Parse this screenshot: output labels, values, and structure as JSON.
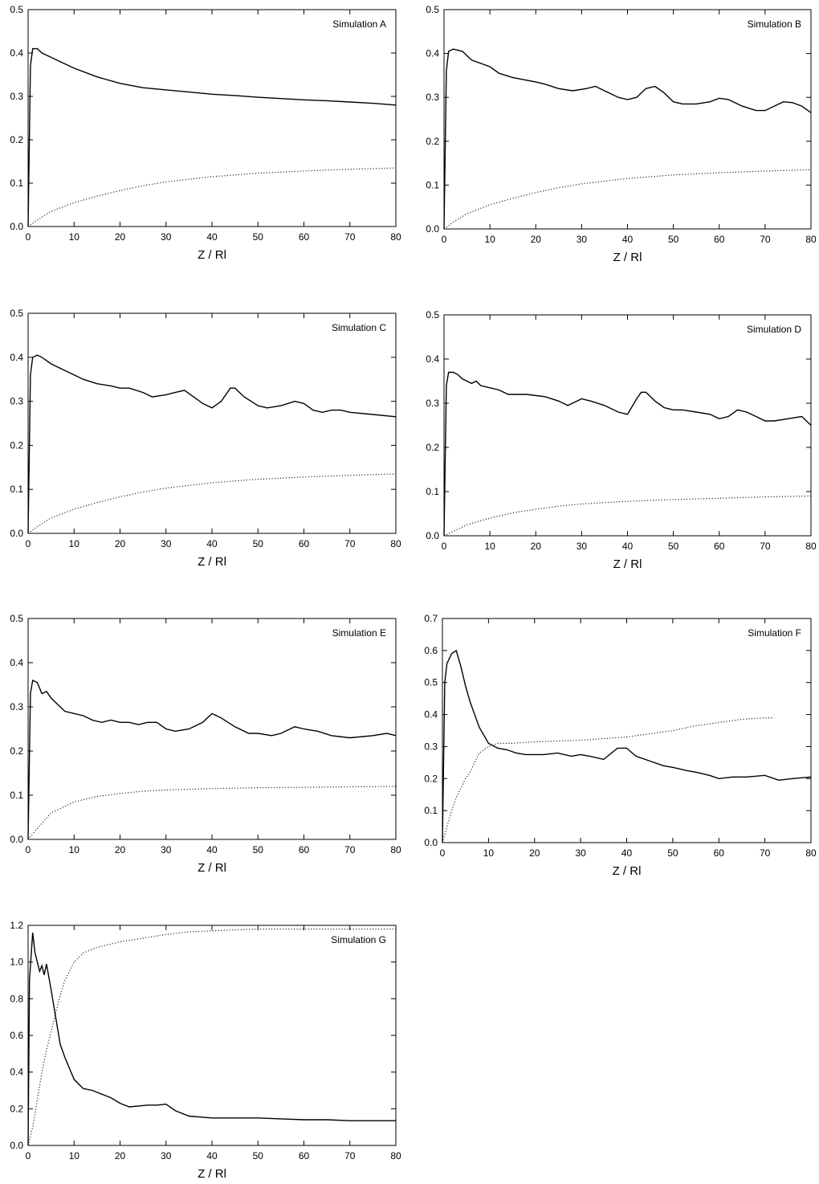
{
  "chart_data": [
    {
      "type": "line",
      "title": "Simulation A",
      "xlabel": "Z / Rl",
      "ylabel": "",
      "xlim": [
        0,
        80
      ],
      "ylim": [
        0,
        0.5
      ],
      "xticks": [
        "0",
        "10",
        "20",
        "30",
        "40",
        "50",
        "60",
        "70",
        "80"
      ],
      "yticks": [
        "0.0",
        "0.1",
        "0.2",
        "0.3",
        "0.4",
        "0.5"
      ],
      "grid": false,
      "series": [
        {
          "style": "solid",
          "color": "#000000",
          "x": [
            0,
            0.5,
            1,
            2,
            3,
            5,
            8,
            10,
            15,
            20,
            25,
            30,
            35,
            40,
            45,
            50,
            55,
            60,
            65,
            70,
            75,
            80
          ],
          "y": [
            0.0,
            0.37,
            0.41,
            0.41,
            0.4,
            0.39,
            0.375,
            0.365,
            0.345,
            0.33,
            0.32,
            0.315,
            0.31,
            0.305,
            0.302,
            0.298,
            0.295,
            0.292,
            0.29,
            0.287,
            0.284,
            0.28
          ]
        },
        {
          "style": "dotted",
          "color": "#000000",
          "x": [
            0,
            2,
            5,
            10,
            15,
            20,
            25,
            30,
            40,
            50,
            60,
            70,
            80
          ],
          "y": [
            0.0,
            0.015,
            0.035,
            0.055,
            0.07,
            0.083,
            0.094,
            0.103,
            0.115,
            0.123,
            0.128,
            0.132,
            0.135
          ]
        }
      ]
    },
    {
      "type": "line",
      "title": "Simulation B",
      "xlabel": "Z / Rl",
      "ylabel": "",
      "xlim": [
        0,
        80
      ],
      "ylim": [
        0,
        0.5
      ],
      "xticks": [
        "0",
        "10",
        "20",
        "30",
        "40",
        "50",
        "60",
        "70",
        "80"
      ],
      "yticks": [
        "0.0",
        "0.1",
        "0.2",
        "0.3",
        "0.4",
        "0.5"
      ],
      "grid": false,
      "series": [
        {
          "style": "solid",
          "color": "#000000",
          "x": [
            0,
            0.5,
            1,
            2,
            4,
            6,
            10,
            12,
            15,
            20,
            22,
            25,
            28,
            31,
            33,
            35,
            38,
            40,
            42,
            44,
            46,
            48,
            50,
            52,
            55,
            58,
            60,
            62,
            65,
            68,
            70,
            72,
            74,
            76,
            78,
            80
          ],
          "y": [
            0.0,
            0.36,
            0.405,
            0.41,
            0.405,
            0.385,
            0.37,
            0.355,
            0.345,
            0.335,
            0.33,
            0.32,
            0.315,
            0.32,
            0.325,
            0.315,
            0.3,
            0.295,
            0.3,
            0.32,
            0.325,
            0.31,
            0.29,
            0.285,
            0.285,
            0.29,
            0.298,
            0.295,
            0.28,
            0.27,
            0.27,
            0.28,
            0.29,
            0.288,
            0.28,
            0.265
          ]
        },
        {
          "style": "dotted",
          "color": "#000000",
          "x": [
            0,
            2,
            5,
            10,
            15,
            20,
            25,
            30,
            40,
            50,
            60,
            70,
            80
          ],
          "y": [
            0.0,
            0.015,
            0.035,
            0.055,
            0.07,
            0.083,
            0.094,
            0.103,
            0.115,
            0.123,
            0.128,
            0.132,
            0.135
          ]
        }
      ]
    },
    {
      "type": "line",
      "title": "Simulation C",
      "xlabel": "Z / Rl",
      "ylabel": "",
      "xlim": [
        0,
        80
      ],
      "ylim": [
        0,
        0.5
      ],
      "xticks": [
        "0",
        "10",
        "20",
        "30",
        "40",
        "50",
        "60",
        "70",
        "80"
      ],
      "yticks": [
        "0.0",
        "0.1",
        "0.2",
        "0.3",
        "0.4",
        "0.5"
      ],
      "grid": false,
      "series": [
        {
          "style": "solid",
          "color": "#000000",
          "x": [
            0,
            0.5,
            1,
            2,
            3,
            5,
            8,
            10,
            12,
            15,
            18,
            20,
            22,
            25,
            27,
            30,
            32,
            34,
            36,
            38,
            40,
            42,
            44,
            45,
            47,
            50,
            52,
            55,
            58,
            60,
            62,
            64,
            66,
            68,
            70,
            75,
            80
          ],
          "y": [
            0.0,
            0.36,
            0.4,
            0.405,
            0.4,
            0.385,
            0.37,
            0.36,
            0.35,
            0.34,
            0.335,
            0.33,
            0.33,
            0.32,
            0.31,
            0.315,
            0.32,
            0.325,
            0.31,
            0.295,
            0.285,
            0.3,
            0.33,
            0.33,
            0.31,
            0.29,
            0.285,
            0.29,
            0.3,
            0.295,
            0.28,
            0.275,
            0.28,
            0.28,
            0.275,
            0.27,
            0.265
          ]
        },
        {
          "style": "dotted",
          "color": "#000000",
          "x": [
            0,
            2,
            5,
            10,
            15,
            20,
            25,
            30,
            40,
            50,
            60,
            70,
            80
          ],
          "y": [
            0.0,
            0.015,
            0.035,
            0.055,
            0.07,
            0.083,
            0.094,
            0.103,
            0.115,
            0.123,
            0.128,
            0.132,
            0.135
          ]
        }
      ]
    },
    {
      "type": "line",
      "title": "Simulation D",
      "xlabel": "Z / Rl",
      "ylabel": "",
      "xlim": [
        0,
        80
      ],
      "ylim": [
        0,
        0.5
      ],
      "xticks": [
        "0",
        "10",
        "20",
        "30",
        "40",
        "50",
        "60",
        "70",
        "80"
      ],
      "yticks": [
        "0.0",
        "0.1",
        "0.2",
        "0.3",
        "0.4",
        "0.5"
      ],
      "grid": false,
      "series": [
        {
          "style": "solid",
          "color": "#000000",
          "x": [
            0,
            0.5,
            1,
            2,
            3,
            4,
            5,
            6,
            7,
            8,
            10,
            12,
            14,
            18,
            22,
            25,
            27,
            28,
            30,
            32,
            35,
            38,
            40,
            42,
            43,
            44,
            46,
            48,
            50,
            52,
            55,
            58,
            60,
            62,
            64,
            66,
            68,
            70,
            72,
            75,
            78,
            80
          ],
          "y": [
            0.0,
            0.34,
            0.37,
            0.37,
            0.365,
            0.355,
            0.35,
            0.345,
            0.35,
            0.34,
            0.335,
            0.33,
            0.32,
            0.32,
            0.315,
            0.305,
            0.295,
            0.3,
            0.31,
            0.305,
            0.295,
            0.28,
            0.275,
            0.31,
            0.325,
            0.325,
            0.305,
            0.29,
            0.285,
            0.285,
            0.28,
            0.275,
            0.265,
            0.27,
            0.285,
            0.28,
            0.27,
            0.26,
            0.26,
            0.265,
            0.27,
            0.25
          ]
        },
        {
          "style": "dotted",
          "color": "#000000",
          "x": [
            0,
            2,
            5,
            10,
            15,
            20,
            25,
            30,
            40,
            50,
            60,
            70,
            80
          ],
          "y": [
            0.0,
            0.01,
            0.025,
            0.04,
            0.052,
            0.06,
            0.067,
            0.072,
            0.078,
            0.082,
            0.085,
            0.088,
            0.09
          ]
        }
      ]
    },
    {
      "type": "line",
      "title": "Simulation E",
      "xlabel": "Z / Rl",
      "ylabel": "",
      "xlim": [
        0,
        80
      ],
      "ylim": [
        0,
        0.5
      ],
      "xticks": [
        "0",
        "10",
        "20",
        "30",
        "40",
        "50",
        "60",
        "70",
        "80"
      ],
      "yticks": [
        "0.0",
        "0.1",
        "0.2",
        "0.3",
        "0.4",
        "0.5"
      ],
      "grid": false,
      "series": [
        {
          "style": "solid",
          "color": "#000000",
          "x": [
            0,
            0.5,
            1,
            2,
            3,
            4,
            5,
            6,
            8,
            10,
            12,
            14,
            16,
            18,
            20,
            22,
            24,
            26,
            28,
            30,
            32,
            35,
            38,
            40,
            42,
            45,
            48,
            50,
            53,
            55,
            58,
            60,
            63,
            66,
            70,
            75,
            78,
            80
          ],
          "y": [
            0.0,
            0.33,
            0.36,
            0.355,
            0.33,
            0.335,
            0.32,
            0.31,
            0.29,
            0.285,
            0.28,
            0.27,
            0.265,
            0.27,
            0.265,
            0.265,
            0.26,
            0.265,
            0.265,
            0.25,
            0.245,
            0.25,
            0.265,
            0.285,
            0.275,
            0.255,
            0.24,
            0.24,
            0.235,
            0.24,
            0.255,
            0.25,
            0.245,
            0.235,
            0.23,
            0.235,
            0.24,
            0.235
          ]
        },
        {
          "style": "dotted",
          "color": "#000000",
          "x": [
            0,
            2,
            5,
            10,
            15,
            20,
            25,
            30,
            40,
            50,
            60,
            70,
            80
          ],
          "y": [
            0.0,
            0.025,
            0.06,
            0.085,
            0.097,
            0.104,
            0.109,
            0.112,
            0.115,
            0.117,
            0.118,
            0.119,
            0.12
          ]
        }
      ]
    },
    {
      "type": "line",
      "title": "Simulation F",
      "xlabel": "Z / Rl",
      "ylabel": "",
      "xlim": [
        0,
        80
      ],
      "ylim": [
        0,
        0.7
      ],
      "xticks": [
        "0",
        "10",
        "20",
        "30",
        "40",
        "50",
        "60",
        "70",
        "80"
      ],
      "yticks": [
        "0.0",
        "0.1",
        "0.2",
        "0.3",
        "0.4",
        "0.5",
        "0.6",
        "0.7"
      ],
      "grid": false,
      "series": [
        {
          "style": "solid",
          "color": "#000000",
          "x": [
            0,
            0.5,
            1,
            2,
            3,
            4,
            5,
            6,
            8,
            10,
            12,
            14,
            16,
            18,
            20,
            22,
            25,
            28,
            30,
            32,
            35,
            38,
            40,
            42,
            45,
            48,
            50,
            53,
            55,
            58,
            60,
            63,
            66,
            70,
            73,
            76,
            80
          ],
          "y": [
            0.0,
            0.5,
            0.56,
            0.59,
            0.6,
            0.55,
            0.49,
            0.44,
            0.36,
            0.31,
            0.295,
            0.29,
            0.28,
            0.275,
            0.275,
            0.275,
            0.28,
            0.27,
            0.275,
            0.27,
            0.26,
            0.295,
            0.295,
            0.27,
            0.255,
            0.24,
            0.235,
            0.225,
            0.22,
            0.21,
            0.2,
            0.205,
            0.205,
            0.21,
            0.195,
            0.2,
            0.205
          ]
        },
        {
          "style": "dotted",
          "color": "#000000",
          "x": [
            0,
            1,
            2,
            3,
            4,
            5,
            6,
            7,
            8,
            10,
            12,
            15,
            20,
            30,
            40,
            50,
            55,
            60,
            65,
            70,
            72
          ],
          "y": [
            0.0,
            0.05,
            0.1,
            0.14,
            0.17,
            0.2,
            0.22,
            0.25,
            0.28,
            0.3,
            0.31,
            0.31,
            0.315,
            0.32,
            0.33,
            0.35,
            0.365,
            0.375,
            0.385,
            0.39,
            0.39
          ]
        }
      ]
    },
    {
      "type": "line",
      "title": "Simulation G",
      "xlabel": "Z / Rl",
      "ylabel": "",
      "xlim": [
        0,
        80
      ],
      "ylim": [
        0,
        1.2
      ],
      "xticks": [
        "0",
        "10",
        "20",
        "30",
        "40",
        "50",
        "60",
        "70",
        "80"
      ],
      "yticks": [
        "0.0",
        "0.2",
        "0.4",
        "0.6",
        "0.8",
        "1.0",
        "1.2"
      ],
      "grid": false,
      "series": [
        {
          "style": "solid",
          "color": "#000000",
          "x": [
            0,
            0.3,
            1,
            1.5,
            2,
            2.5,
            3,
            3.5,
            4,
            5,
            6,
            7,
            8,
            9,
            10,
            12,
            14,
            16,
            18,
            20,
            22,
            24,
            26,
            28,
            30,
            32,
            35,
            40,
            45,
            50,
            55,
            60,
            65,
            70,
            75,
            80
          ],
          "y": [
            0.0,
            0.9,
            1.16,
            1.05,
            1.0,
            0.95,
            0.98,
            0.93,
            0.99,
            0.85,
            0.7,
            0.55,
            0.48,
            0.42,
            0.36,
            0.31,
            0.3,
            0.28,
            0.26,
            0.23,
            0.21,
            0.215,
            0.22,
            0.22,
            0.225,
            0.19,
            0.16,
            0.15,
            0.15,
            0.15,
            0.145,
            0.14,
            0.14,
            0.135,
            0.135,
            0.135
          ]
        },
        {
          "style": "dotted",
          "color": "#000000",
          "x": [
            0,
            1,
            2,
            3,
            4,
            5,
            6,
            7,
            8,
            10,
            12,
            15,
            20,
            25,
            30,
            35,
            40,
            50,
            60,
            70,
            80
          ],
          "y": [
            0.0,
            0.1,
            0.25,
            0.4,
            0.52,
            0.62,
            0.72,
            0.82,
            0.9,
            1.0,
            1.05,
            1.08,
            1.11,
            1.13,
            1.15,
            1.165,
            1.17,
            1.18,
            1.18,
            1.18,
            1.18
          ]
        }
      ]
    }
  ]
}
